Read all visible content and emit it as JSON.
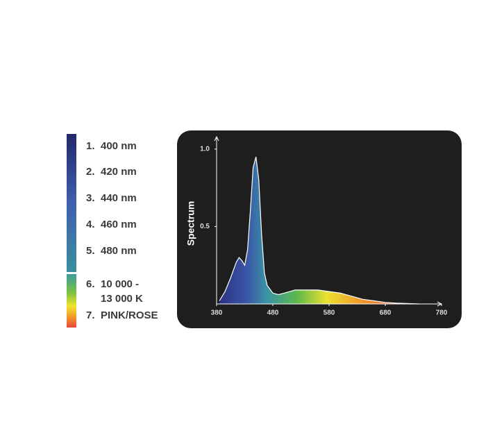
{
  "legend": {
    "items": [
      {
        "number": "1.",
        "lines": [
          "400 nm"
        ]
      },
      {
        "number": "2.",
        "lines": [
          "420 nm"
        ]
      },
      {
        "number": "3.",
        "lines": [
          "440 nm"
        ]
      },
      {
        "number": "4.",
        "lines": [
          "460 nm"
        ]
      },
      {
        "number": "5.",
        "lines": [
          "480 nm"
        ]
      },
      {
        "number": "6.",
        "lines": [
          "10 000 -",
          "13 000 K"
        ]
      },
      {
        "number": "7.",
        "lines": [
          "PINK/ROSE"
        ]
      }
    ]
  },
  "chart_data": {
    "type": "area",
    "y_label": "Spectrum",
    "x": [
      385,
      395,
      405,
      415,
      420,
      425,
      430,
      435,
      440,
      445,
      450,
      455,
      460,
      465,
      470,
      480,
      490,
      500,
      520,
      540,
      560,
      580,
      600,
      620,
      640,
      660,
      680,
      700,
      740
    ],
    "values": [
      0.02,
      0.08,
      0.17,
      0.27,
      0.3,
      0.28,
      0.25,
      0.35,
      0.6,
      0.88,
      0.95,
      0.8,
      0.45,
      0.2,
      0.12,
      0.07,
      0.06,
      0.07,
      0.09,
      0.09,
      0.09,
      0.08,
      0.07,
      0.05,
      0.03,
      0.02,
      0.01,
      0.005,
      0
    ],
    "xlim": [
      380,
      780
    ],
    "xticks": [
      380,
      480,
      580,
      680,
      780
    ],
    "ylim": [
      0,
      1.08
    ],
    "yticks": [
      {
        "value": 1,
        "label": "1.0"
      },
      0.5
    ]
  }
}
